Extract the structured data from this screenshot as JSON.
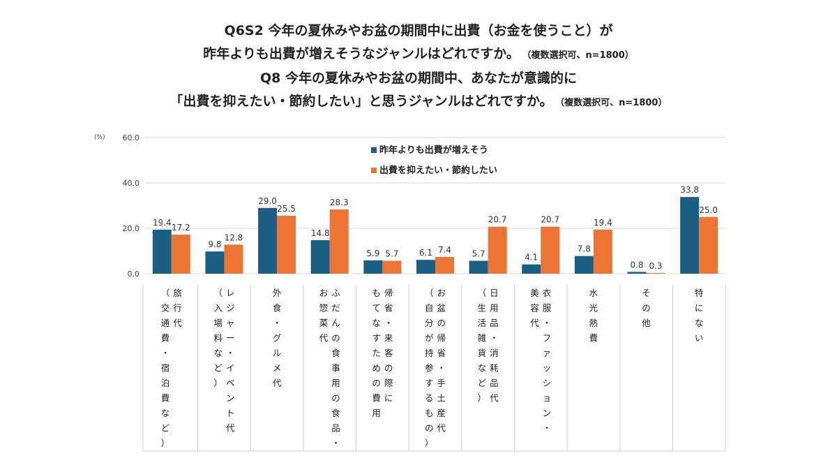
{
  "title": {
    "line1": "Q6S2 今年の夏休みやお盆の期間中に出費（お金を使うこと）が",
    "line2": "昨年よりも出費が増えそうなジャンルはどれですか。",
    "line2_note": "（複数選択可、n=1800）",
    "line3": "Q8 今年の夏休みやお盆の期間中、あなたが意識的に",
    "line4": "「出費を抑えたい・節約したい」と思うジャンルはどれですか。",
    "line4_note": "（複数選択可、n=1800）"
  },
  "chart_data": {
    "type": "bar",
    "unit": "(%)",
    "ylim": [
      0,
      60
    ],
    "yticks": [
      "0.0",
      "20.0",
      "40.0",
      "60.0"
    ],
    "categories": [
      [
        "旅行代",
        "（交通費・宿泊費など）"
      ],
      [
        "レジャー・イベント代",
        "（入場料など）"
      ],
      [
        "外食・グルメ代"
      ],
      [
        "ふだんの食事用の食品・",
        "お惣菜代"
      ],
      [
        "帰省・来客の際に",
        "もてなすための費用"
      ],
      [
        "お盆の帰省・手土産代",
        "（自分が持参するもの）"
      ],
      [
        "日用品・消耗品代",
        "（生活雑貨など）"
      ],
      [
        "衣服・ファッション・",
        "美容代"
      ],
      [
        "水光熱費"
      ],
      [
        "その他"
      ],
      [
        "特にない"
      ]
    ],
    "series": [
      {
        "name": "昨年よりも出費が増えそう",
        "color": "#1b5f84",
        "values": [
          19.4,
          9.8,
          29.0,
          14.8,
          5.9,
          6.1,
          5.7,
          4.1,
          7.8,
          0.8,
          33.8
        ],
        "labels": [
          "19.4",
          "9.8",
          "29.0",
          "14.8",
          "5.9",
          "6.1",
          "5.7",
          "4.1",
          "7.8",
          "0.8",
          "33.8"
        ]
      },
      {
        "name": "出費を抑えたい・節約したい",
        "color": "#ec7434",
        "values": [
          17.2,
          12.8,
          25.5,
          28.3,
          5.7,
          7.4,
          20.7,
          20.7,
          19.4,
          0.3,
          25.0
        ],
        "labels": [
          "17.2",
          "12.8",
          "25.5",
          "28.3",
          "5.7",
          "7.4",
          "20.7",
          "20.7",
          "19.4",
          "0.3",
          "25.0"
        ]
      }
    ],
    "legend_position": "top-center",
    "grid": true
  }
}
